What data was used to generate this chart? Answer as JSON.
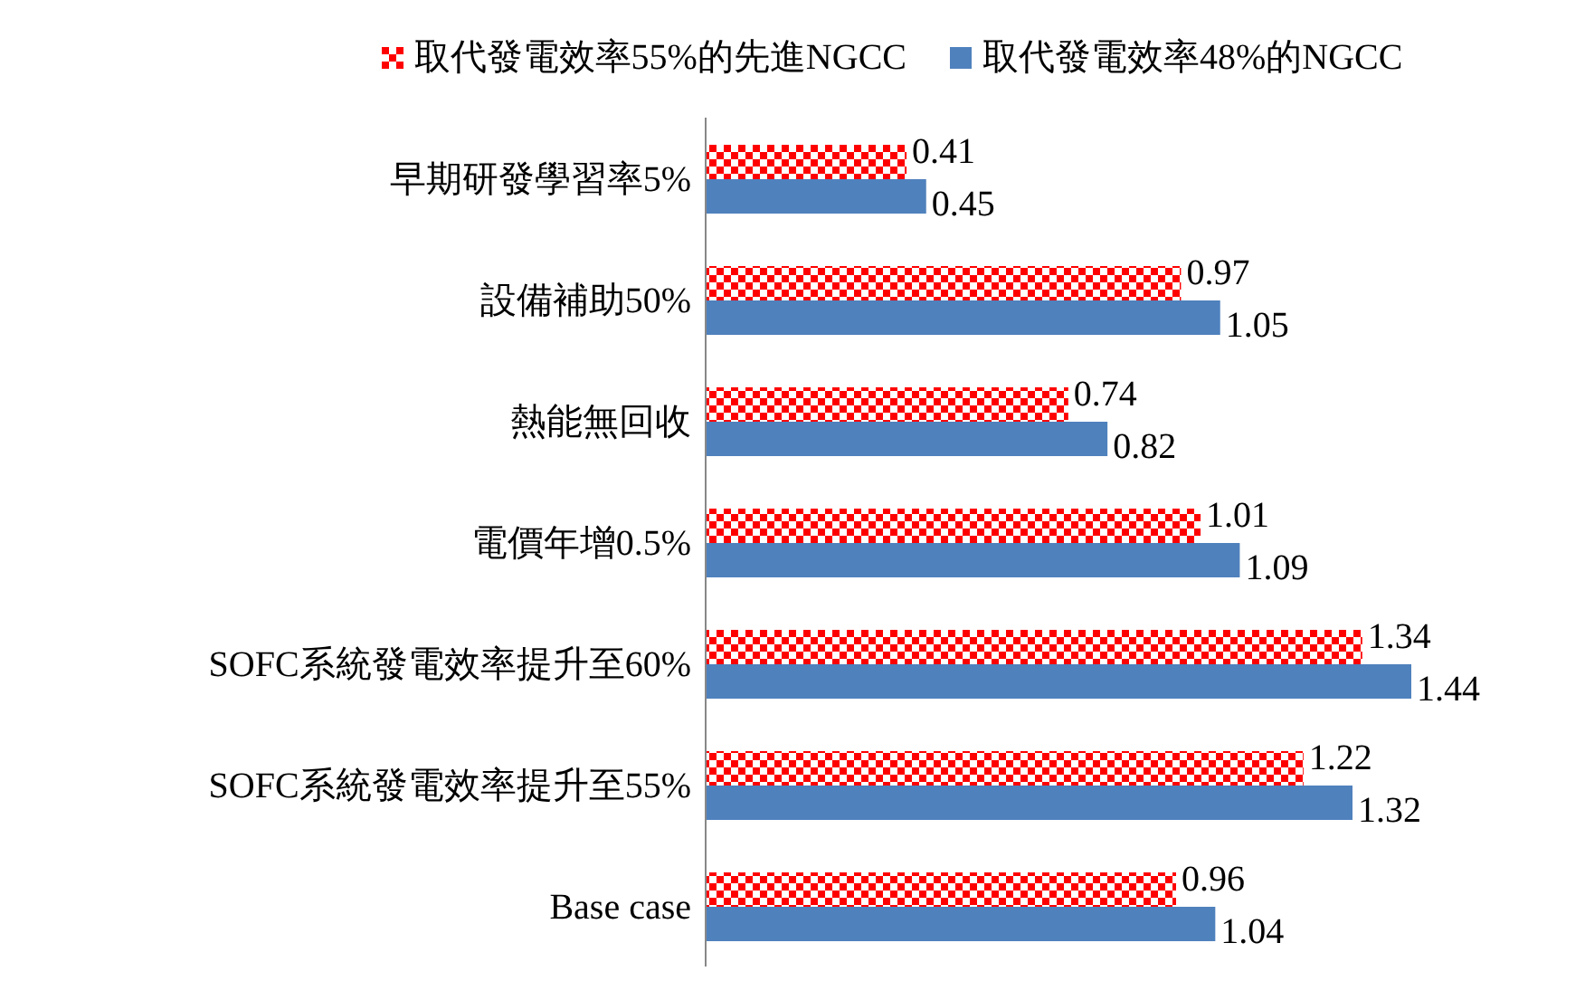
{
  "chart_data": {
    "type": "bar",
    "orientation": "horizontal",
    "categories": [
      "早期研發學習率5%",
      "設備補助50%",
      "熱能無回收",
      "電價年增0.5%",
      "SOFC系統發電效率提升至60%",
      "SOFC系統發電效率提升至55%",
      "Base case"
    ],
    "series": [
      {
        "name": "取代發電效率55%的先進NGCC",
        "color": "#ff0000",
        "values": [
          0.41,
          0.97,
          0.74,
          1.01,
          1.34,
          1.22,
          0.96
        ]
      },
      {
        "name": "取代發電效率48%的NGCC",
        "color": "#4f81bd",
        "values": [
          0.45,
          1.05,
          0.82,
          1.09,
          1.44,
          1.32,
          1.04
        ]
      }
    ],
    "data_labels": true,
    "legend": "top",
    "grid": false
  }
}
